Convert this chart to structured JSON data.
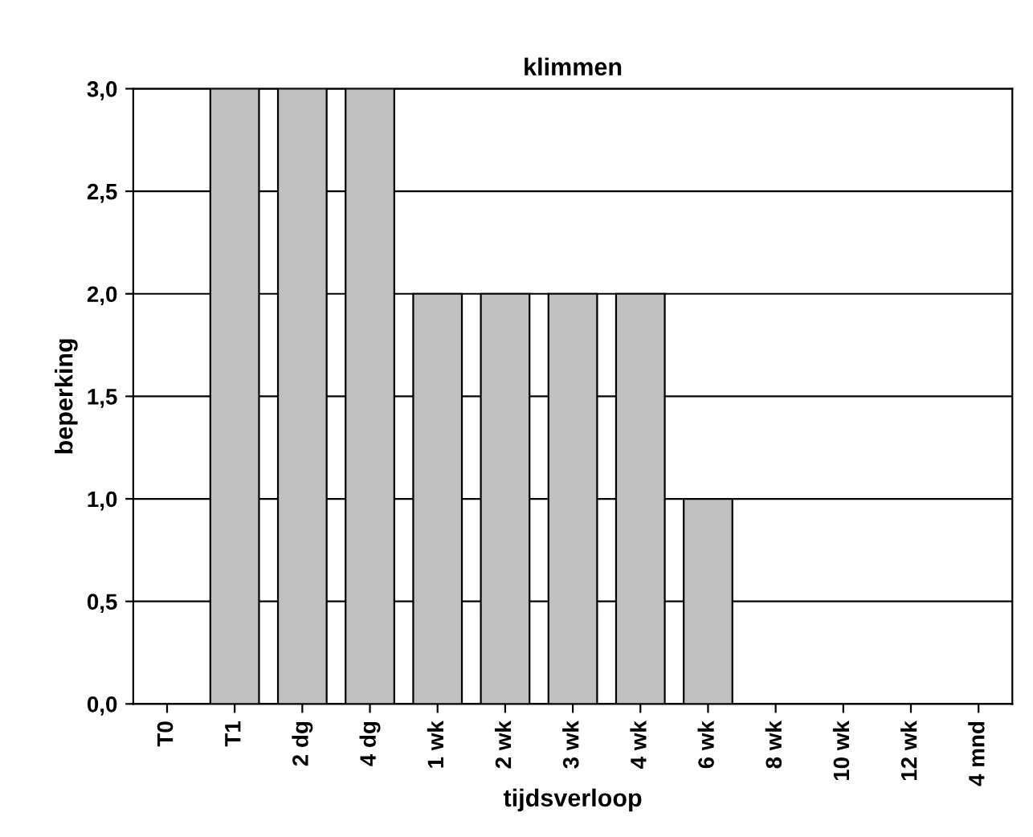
{
  "chart_data": {
    "type": "bar",
    "title": "klimmen",
    "xlabel": "tijdsverloop",
    "ylabel": "beperking",
    "categories": [
      "T0",
      "T1",
      "2 dg",
      "4 dg",
      "1 wk",
      "2 wk",
      "3 wk",
      "4 wk",
      "6 wk",
      "8 wk",
      "10 wk",
      "12 wk",
      "4 mnd"
    ],
    "values": [
      0,
      3,
      3,
      3,
      2,
      2,
      2,
      2,
      1,
      0,
      0,
      0,
      0
    ],
    "color": "#c0c0c0",
    "ylim": [
      0,
      3
    ],
    "yticks": [
      {
        "value": 0,
        "label": "0,0"
      },
      {
        "value": 0.5,
        "label": "0,5"
      },
      {
        "value": 1,
        "label": "1,0"
      },
      {
        "value": 1.5,
        "label": "1,5"
      },
      {
        "value": 2,
        "label": "2,0"
      },
      {
        "value": 2.5,
        "label": "2,5"
      },
      {
        "value": 3,
        "label": "3,0"
      }
    ],
    "grid": "y"
  }
}
